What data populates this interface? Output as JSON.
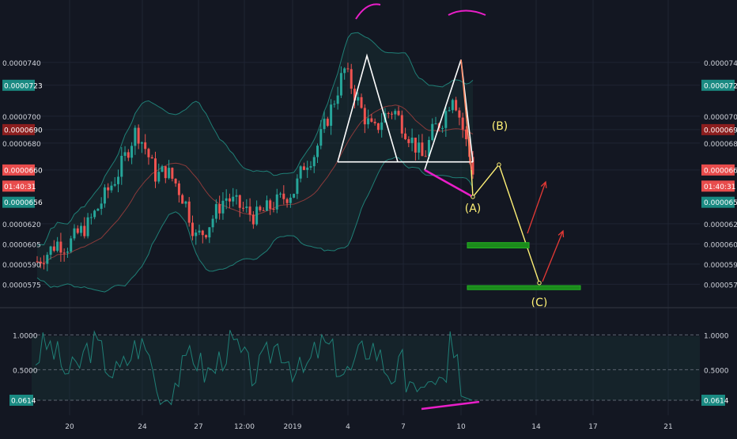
{
  "theme": {
    "background": "#131722",
    "grid": "#1f2433",
    "bullish": "#26a69a",
    "bearish": "#ef5350",
    "bollinger": "#1f7f76",
    "bollinger_fill": "#1a3a3a",
    "pattern_line": "#ffffff",
    "projection_line": "#fff176",
    "divergence_line": "#e91ec8",
    "arrow": "#e53935",
    "target_zone": "#1b8a1b"
  },
  "price_axis": {
    "labels": [
      "0.0000740",
      "0.0000700",
      "0.0000680",
      "0.0000620",
      "0.0000605",
      "0.0000590",
      "0.0000575"
    ],
    "badges": [
      {
        "text": "0.0000723",
        "kind": "teal"
      },
      {
        "text": "0.0000690",
        "kind": "darkred"
      },
      {
        "text": "0.0000660",
        "kind": "red"
      },
      {
        "text": "01:40:31",
        "kind": "red"
      },
      {
        "text": "0.0000656",
        "kind": "teal"
      }
    ]
  },
  "indicator_axis": {
    "labels": [
      "1.0000",
      "0.5000"
    ],
    "badge": "0.0614"
  },
  "time_axis": {
    "labels": [
      "20",
      "24",
      "27",
      "12:00",
      "2019",
      "4",
      "7",
      "10",
      "14",
      "17",
      "21"
    ]
  },
  "annotations": {
    "A": "(A)",
    "B": "(B)",
    "C": "(C)"
  },
  "chart_data": [
    {
      "type": "candlestick",
      "series_name": "",
      "ylim": [
        5.67e-05,
        7.52e-05
      ],
      "bands": [
        "upper band",
        "basis",
        "lower band"
      ],
      "close_path": [
        5.92e-05,
        5.98e-05,
        6.06e-05,
        6.03e-05,
        6.12e-05,
        6.18e-05,
        6.3e-05,
        6.43e-05,
        6.55e-05,
        6.72e-05,
        6.9e-05,
        6.75e-05,
        6.55e-05,
        6.6e-05,
        6.5e-05,
        6.35e-05,
        6.1e-05,
        6.15e-05,
        6.28e-05,
        6.4e-05,
        6.35e-05,
        6.3e-05,
        6.25e-05,
        6.3e-05,
        6.35e-05,
        6.4e-05,
        6.45e-05,
        6.65e-05,
        6.72e-05,
        6.92e-05,
        7.12e-05,
        7.35e-05,
        7.18e-05,
        7e-05,
        6.88e-05,
        7e-05,
        7.05e-05,
        6.92e-05,
        6.8e-05,
        6.68e-05,
        6.9e-05,
        6.98e-05,
        7.18e-05,
        6.9e-05,
        6.6e-05
      ],
      "overlay_levels": {
        "neckline": 6.66e-05,
        "left_peak": 7.45e-05,
        "right_peak": 7.42e-05,
        "point_A": 6.4e-05,
        "point_B": 6.64e-05,
        "point_C": 5.76e-05
      },
      "target_zones": [
        [
          6.02e-05,
          6.06e-05
        ],
        [
          5.71e-05,
          5.74e-05
        ]
      ]
    },
    {
      "type": "line",
      "series_name": "",
      "ylim": [
        -0.1,
        1.45
      ],
      "levels": [
        1.0,
        0.5
      ],
      "last_value": 0.0614
    }
  ]
}
